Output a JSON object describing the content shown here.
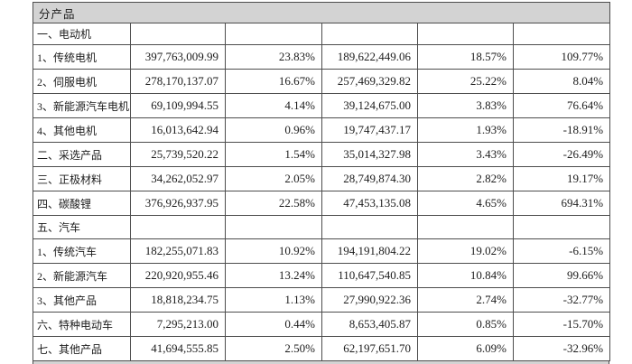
{
  "table": {
    "header_label": "分产品",
    "colors": {
      "header_bg": "#d3d3d3",
      "border": "#4d4d4d",
      "text": "#1c1c1c"
    },
    "rows": [
      {
        "label": "一、电动机",
        "cells": [
          "",
          "",
          "",
          "",
          ""
        ]
      },
      {
        "label": "1、传统电机",
        "cells": [
          "397,763,009.99",
          "23.83%",
          "189,622,449.06",
          "18.57%",
          "109.77%"
        ]
      },
      {
        "label": "2、伺服电机",
        "cells": [
          "278,170,137.07",
          "16.67%",
          "257,469,329.82",
          "25.22%",
          "8.04%"
        ]
      },
      {
        "label": "3、新能源汽车电机",
        "cells": [
          "69,109,994.55",
          "4.14%",
          "39,124,675.00",
          "3.83%",
          "76.64%"
        ]
      },
      {
        "label": "4、其他电机",
        "cells": [
          "16,013,642.94",
          "0.96%",
          "19,747,437.17",
          "1.93%",
          "-18.91%"
        ]
      },
      {
        "label": "二、采选产品",
        "cells": [
          "25,739,520.22",
          "1.54%",
          "35,014,327.98",
          "3.43%",
          "-26.49%"
        ]
      },
      {
        "label": "三、正极材料",
        "cells": [
          "34,262,052.97",
          "2.05%",
          "28,749,874.30",
          "2.82%",
          "19.17%"
        ]
      },
      {
        "label": "四、碳酸锂",
        "cells": [
          "376,926,937.95",
          "22.58%",
          "47,453,135.08",
          "4.65%",
          "694.31%"
        ]
      },
      {
        "label": "五、汽车",
        "cells": [
          "",
          "",
          "",
          "",
          ""
        ]
      },
      {
        "label": "1、传统汽车",
        "cells": [
          "182,255,071.83",
          "10.92%",
          "194,191,804.22",
          "19.02%",
          "-6.15%"
        ]
      },
      {
        "label": "2、新能源汽车",
        "cells": [
          "220,920,955.46",
          "13.24%",
          "110,647,540.85",
          "10.84%",
          "99.66%"
        ]
      },
      {
        "label": "3、其他产品",
        "cells": [
          "18,818,234.75",
          "1.13%",
          "27,990,922.36",
          "2.74%",
          "-32.77%"
        ]
      },
      {
        "label": "六、特种电动车",
        "cells": [
          "7,295,213.00",
          "0.44%",
          "8,653,405.87",
          "0.85%",
          "-15.70%"
        ]
      },
      {
        "label": "七、其他产品",
        "cells": [
          "41,694,555.85",
          "2.50%",
          "62,197,651.70",
          "6.09%",
          "-32.96%"
        ]
      }
    ]
  }
}
